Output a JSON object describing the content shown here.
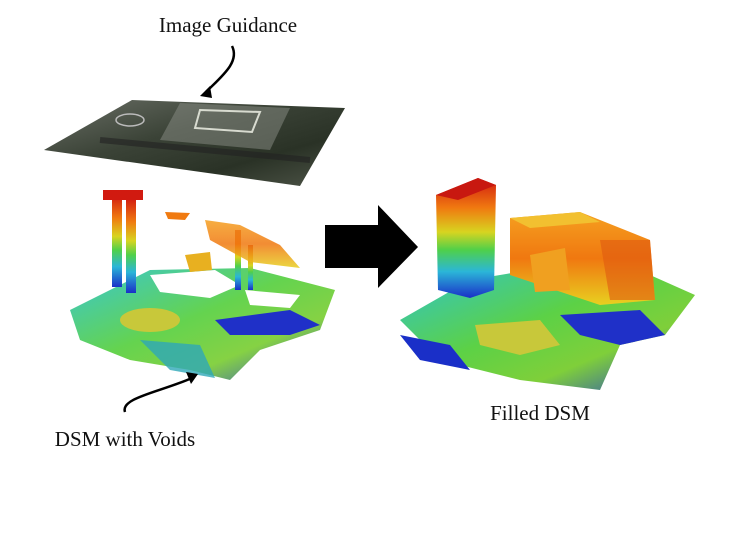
{
  "labels": {
    "top": "Image Guidance",
    "left": "DSM with Voids",
    "right": "Filled DSM"
  }
}
